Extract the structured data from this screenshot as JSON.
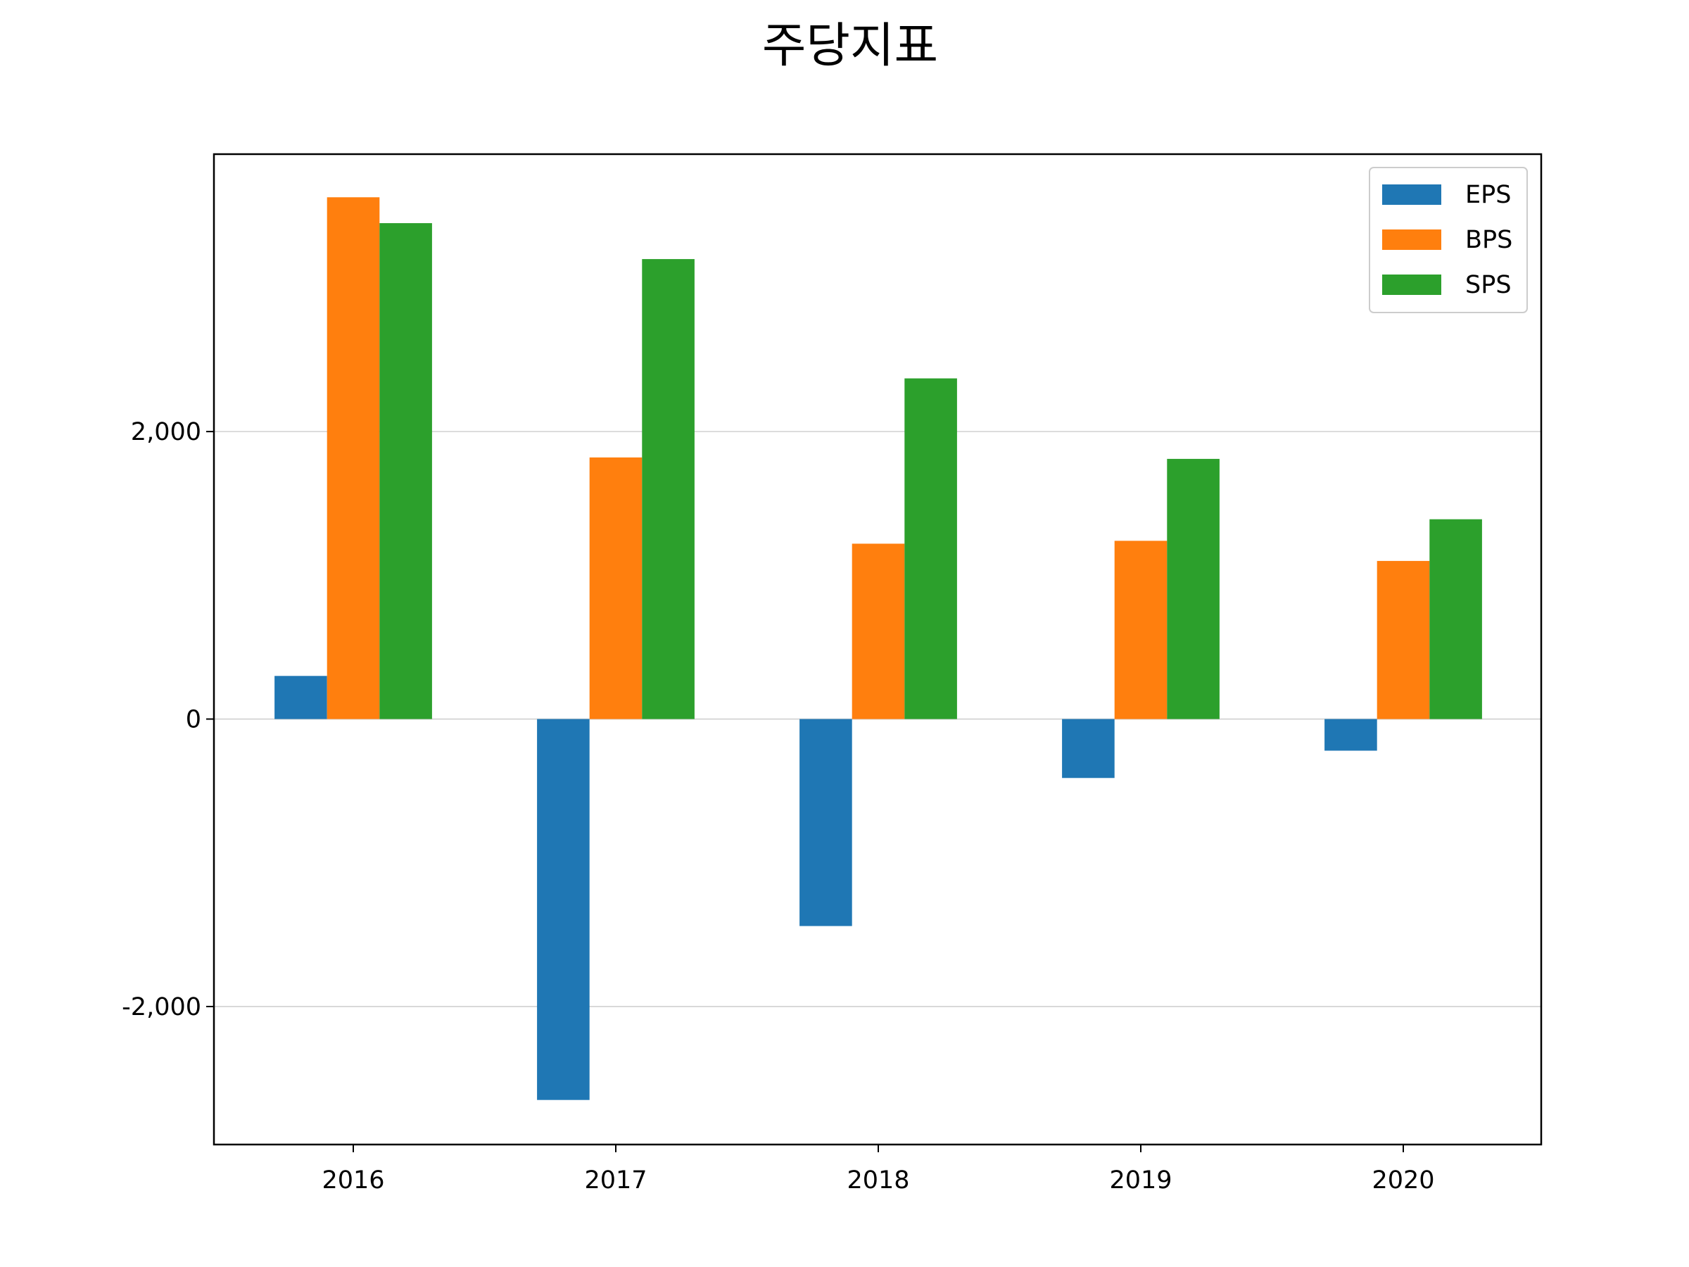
{
  "chart_data": {
    "type": "bar",
    "title": "주당지표",
    "xlabel": "",
    "ylabel": "",
    "categories": [
      "2016",
      "2017",
      "2018",
      "2019",
      "2020"
    ],
    "series": [
      {
        "name": "EPS",
        "color": "#1f77b4",
        "values": [
          300,
          -2650,
          -1440,
          -410,
          -220
        ]
      },
      {
        "name": "BPS",
        "color": "#ff7f0e",
        "values": [
          3630,
          1820,
          1220,
          1240,
          1100
        ]
      },
      {
        "name": "SPS",
        "color": "#2ca02c",
        "values": [
          3450,
          3200,
          2370,
          1810,
          1390
        ]
      }
    ],
    "ylim": [
      -2960,
      3930
    ],
    "yticks": [
      -2000,
      0,
      2000
    ],
    "ytick_labels": [
      "-2,000",
      "0",
      "2,000"
    ],
    "grid": "horizontal",
    "legend_position": "top-right"
  }
}
